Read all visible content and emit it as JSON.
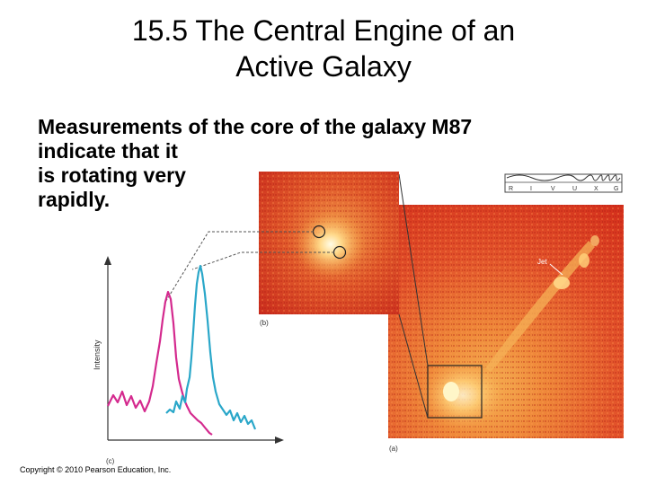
{
  "slide": {
    "title_line1": "15.5 The Central Engine of an",
    "title_line2": "Active Galaxy",
    "body_line1": "Measurements of the core of the galaxy M87",
    "body_line2": "indicate that it",
    "body_line3": "is rotating very",
    "body_line4": "rapidly.",
    "copyright": "Copyright © 2010 Pearson Education, Inc."
  },
  "figure": {
    "panel_a_label": "(a)",
    "panel_b_label": "(b)",
    "panel_c_label": "(c)",
    "jet_label": "Jet",
    "intensity_label": "Intensity",
    "spectrum_letters": [
      "R",
      "I",
      "V",
      "U",
      "X",
      "G"
    ],
    "colors": {
      "blueshift_curve": "#2aa7c9",
      "redshift_curve": "#d42a8e",
      "galaxy_red": "#d8321c",
      "galaxy_orange": "#f08a30"
    }
  }
}
